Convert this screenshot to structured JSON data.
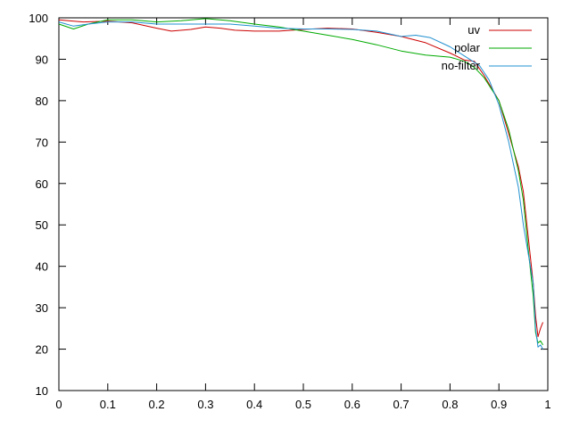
{
  "chart_data": {
    "type": "line",
    "title": "",
    "xlabel": "",
    "ylabel": "",
    "xlim": [
      0,
      1
    ],
    "ylim": [
      10,
      100
    ],
    "x_ticks": [
      "0",
      "0.1",
      "0.2",
      "0.3",
      "0.4",
      "0.5",
      "0.6",
      "0.7",
      "0.8",
      "0.9",
      "1"
    ],
    "y_ticks": [
      "10",
      "20",
      "30",
      "40",
      "50",
      "60",
      "70",
      "80",
      "90",
      "100"
    ],
    "grid": false,
    "legend_position": "top-right",
    "series": [
      {
        "name": "uv",
        "color": "#cc0000",
        "x": [
          0,
          0.02,
          0.05,
          0.1,
          0.15,
          0.2,
          0.23,
          0.27,
          0.3,
          0.33,
          0.36,
          0.4,
          0.45,
          0.5,
          0.55,
          0.6,
          0.65,
          0.7,
          0.75,
          0.8,
          0.83,
          0.85,
          0.87,
          0.9,
          0.92,
          0.94,
          0.95,
          0.96,
          0.97,
          0.975,
          0.98,
          0.985,
          0.99
        ],
        "y": [
          99.5,
          99.3,
          99.0,
          99.2,
          98.8,
          97.5,
          96.8,
          97.2,
          97.8,
          97.5,
          97.0,
          96.8,
          96.8,
          97.2,
          97.5,
          97.3,
          96.5,
          95.5,
          94.0,
          91.5,
          89.8,
          89.5,
          86.0,
          80.0,
          72.0,
          64.0,
          58.0,
          47.0,
          36.0,
          28.0,
          23.0,
          25.0,
          26.5
        ]
      },
      {
        "name": "polar",
        "color": "#00aa00",
        "x": [
          0,
          0.03,
          0.06,
          0.1,
          0.15,
          0.2,
          0.25,
          0.3,
          0.35,
          0.4,
          0.45,
          0.5,
          0.55,
          0.6,
          0.65,
          0.7,
          0.75,
          0.8,
          0.83,
          0.85,
          0.87,
          0.9,
          0.92,
          0.94,
          0.95,
          0.96,
          0.97,
          0.975,
          0.98,
          0.985,
          0.99
        ],
        "y": [
          98.5,
          97.3,
          98.5,
          99.5,
          99.5,
          99.0,
          99.3,
          99.8,
          99.3,
          98.5,
          97.8,
          96.8,
          95.8,
          94.8,
          93.5,
          92.0,
          91.0,
          90.5,
          89.5,
          88.0,
          85.5,
          80.0,
          73.0,
          63.0,
          56.0,
          44.0,
          33.0,
          24.0,
          21.5,
          22.0,
          21.0
        ]
      },
      {
        "name": "no-filter",
        "color": "#2090d0",
        "x": [
          0,
          0.03,
          0.06,
          0.1,
          0.15,
          0.2,
          0.25,
          0.3,
          0.35,
          0.4,
          0.45,
          0.5,
          0.55,
          0.6,
          0.65,
          0.7,
          0.73,
          0.76,
          0.8,
          0.84,
          0.86,
          0.88,
          0.9,
          0.92,
          0.94,
          0.95,
          0.96,
          0.97,
          0.975,
          0.98,
          0.985,
          0.99
        ],
        "y": [
          99.0,
          98.0,
          98.5,
          99.0,
          99.0,
          98.5,
          98.5,
          98.5,
          98.5,
          98.0,
          97.5,
          97.3,
          97.3,
          97.2,
          96.8,
          95.5,
          95.8,
          95.2,
          93.0,
          90.0,
          88.5,
          85.0,
          79.0,
          70.0,
          59.0,
          50.0,
          43.0,
          36.0,
          25.0,
          20.5,
          21.0,
          20.0
        ]
      }
    ]
  }
}
